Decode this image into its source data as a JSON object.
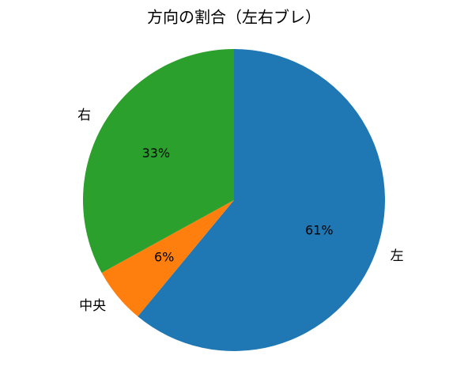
{
  "chart_data": {
    "type": "pie",
    "title": "方向の割合（左右ブレ）",
    "categories": [
      "左",
      "中央",
      "右"
    ],
    "values": [
      61,
      6,
      33
    ],
    "value_labels": [
      "61%",
      "6%",
      "33%"
    ],
    "colors": [
      "#1f77b4",
      "#ff7f0e",
      "#2ca02c"
    ]
  }
}
